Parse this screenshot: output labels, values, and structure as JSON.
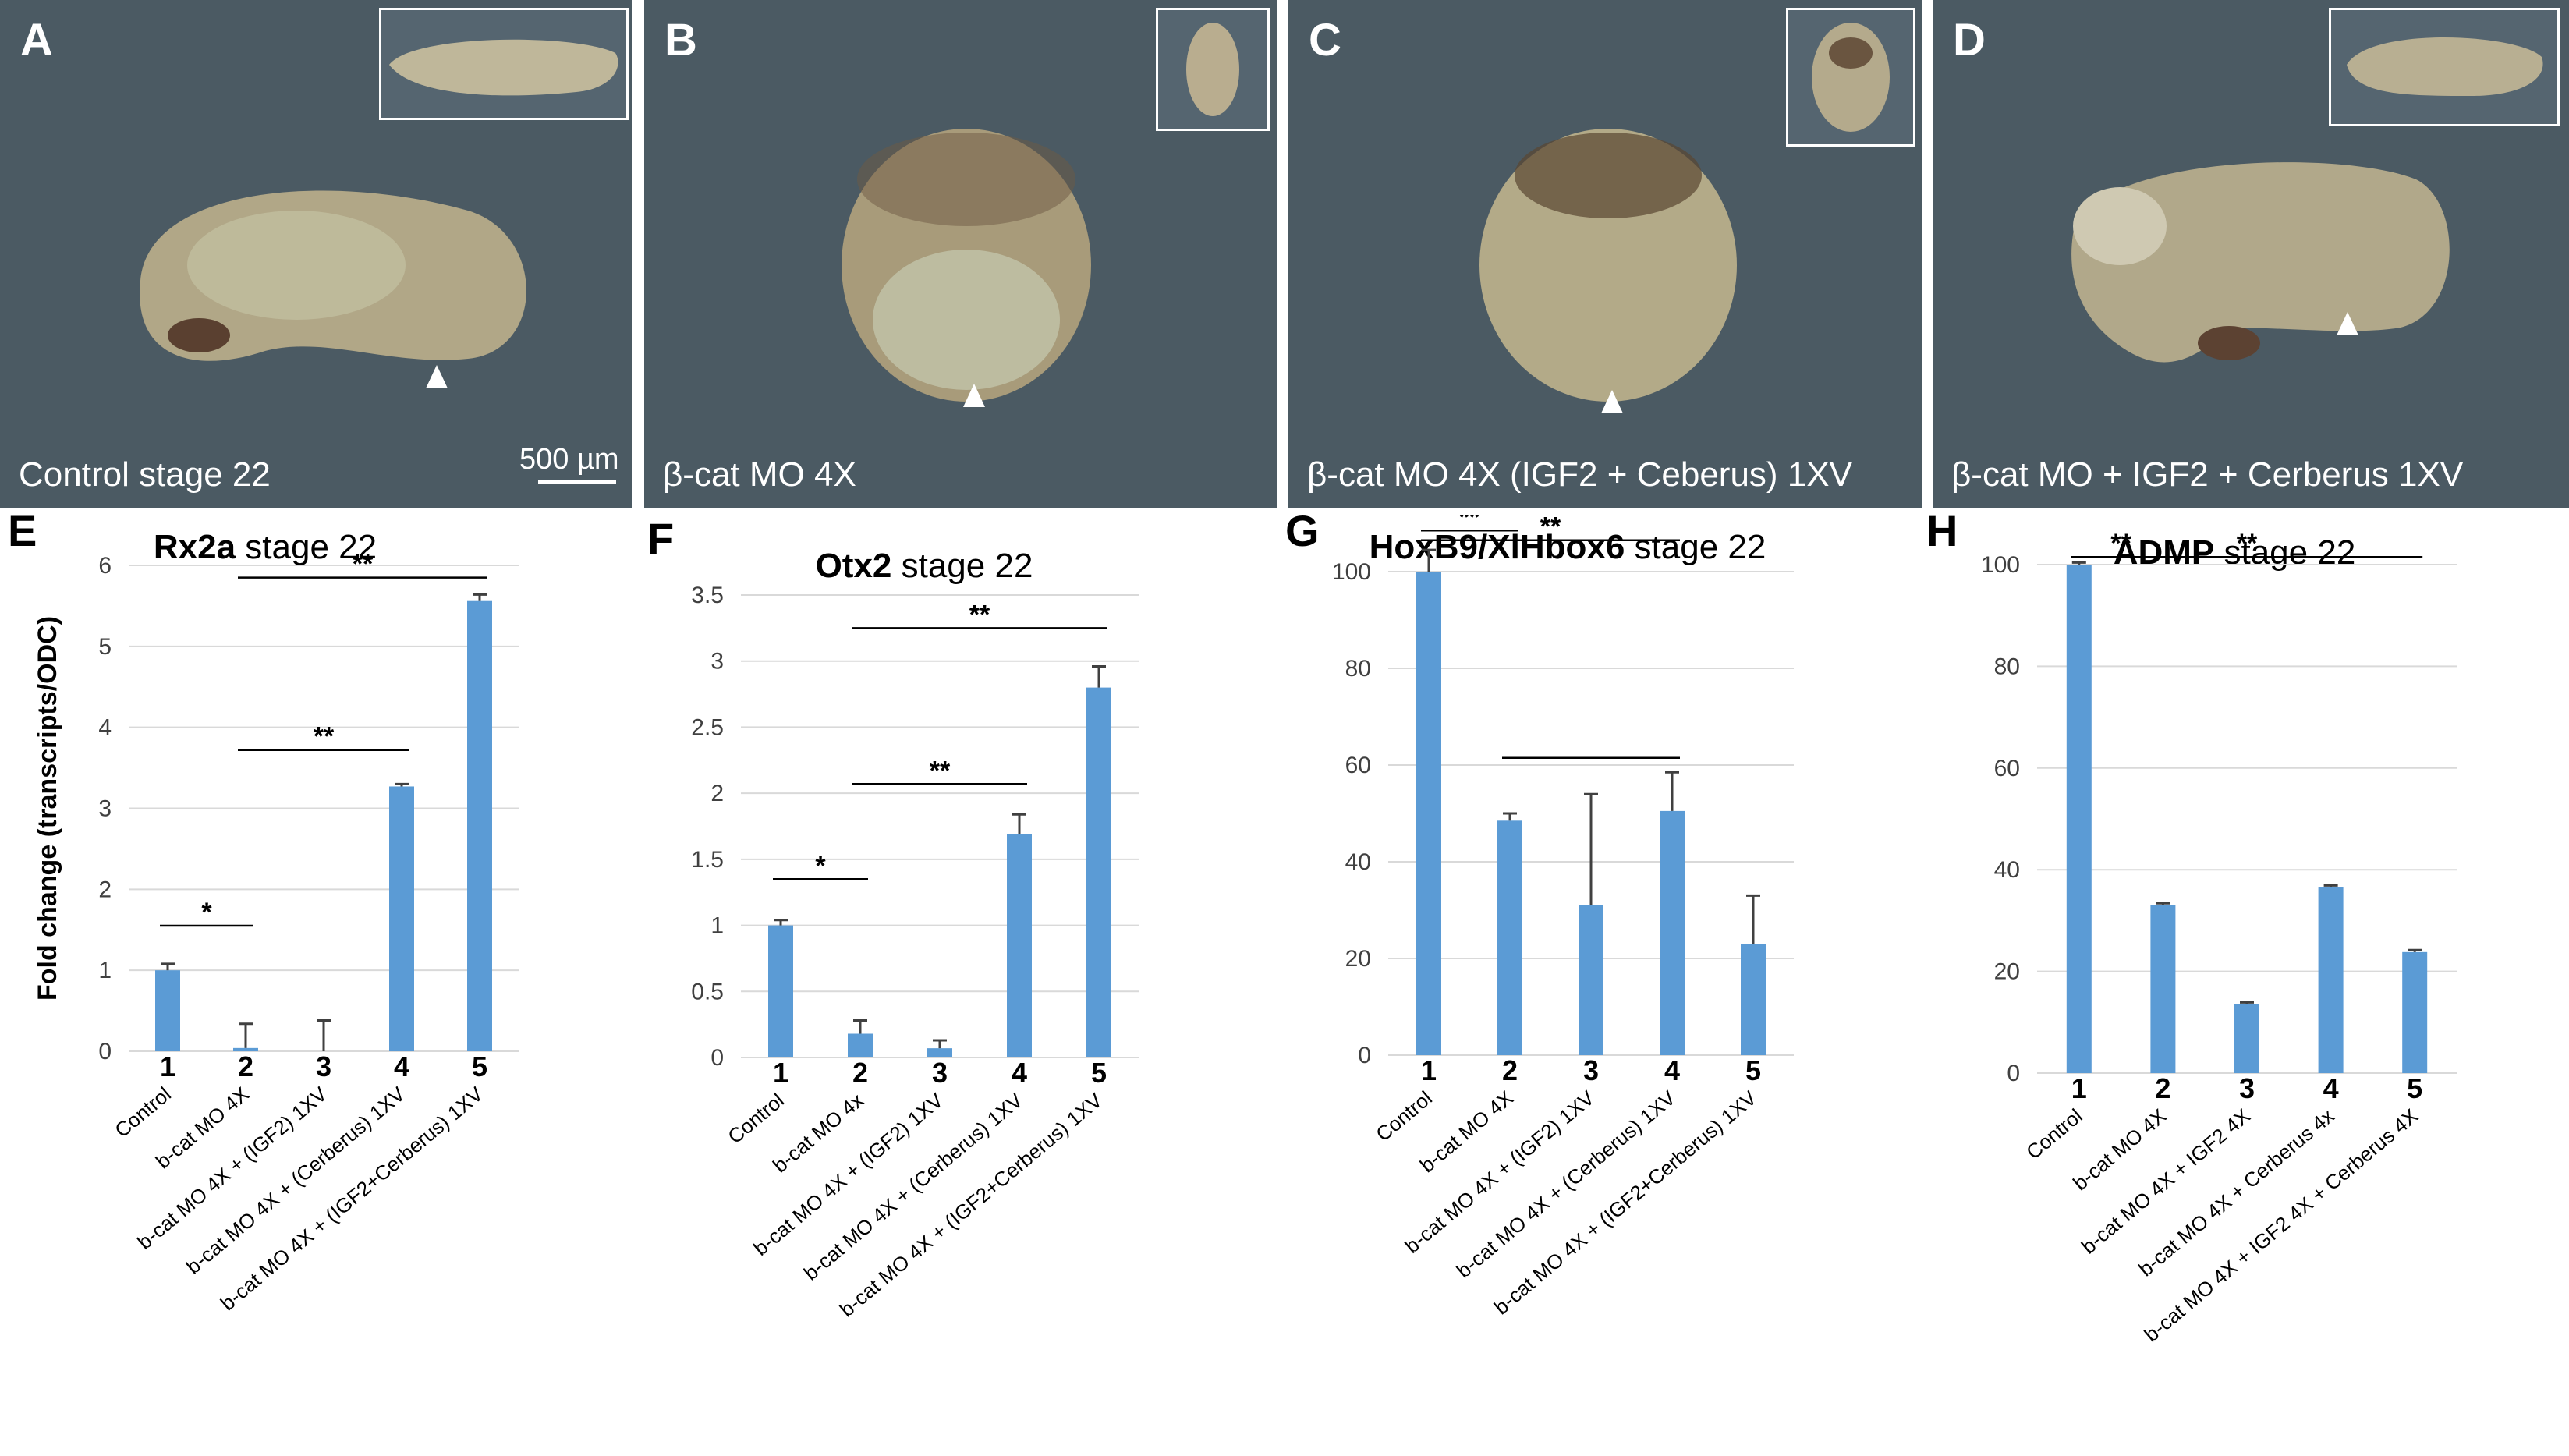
{
  "photos": [
    {
      "letter": "A",
      "caption": "Control stage 22",
      "scale": "500 µm"
    },
    {
      "letter": "B",
      "caption": "β-cat MO 4X"
    },
    {
      "letter": "C",
      "caption": "β-cat MO 4X (IGF2 + Ceberus)  1XV"
    },
    {
      "letter": "D",
      "caption": "β-cat MO + IGF2 + Cerberus  1XV"
    }
  ],
  "colors": {
    "bar": "#5b9bd5",
    "grid": "#d9d9d9",
    "photo_bg": "#4b5a63",
    "embryo": "#b4aa8a"
  },
  "chart_data": [
    {
      "type": "bar",
      "letter": "E",
      "title_bold": "Rx2a",
      "title_rest": " stage 22",
      "ylabel": "Fold change  (transcripts/ODC)",
      "ylim": [
        0,
        6
      ],
      "yticks": [
        "0",
        "1",
        "2",
        "3",
        "4",
        "5",
        "6"
      ],
      "ytick_values": [
        0,
        1,
        2,
        3,
        4,
        5,
        6
      ],
      "numbers": [
        "1",
        "2",
        "3",
        "4",
        "5"
      ],
      "categories": [
        "Control",
        "b-cat MO 4X",
        "b-cat MO 4X + (IGF2) 1XV",
        "b-cat MO 4X + (Cerberus) 1XV",
        "b-cat MO 4X + (IGF2+Cerberus) 1XV"
      ],
      "values": [
        1.0,
        0.04,
        0.0,
        3.27,
        5.56
      ],
      "errors": [
        0.08,
        0.3,
        0.38,
        0.03,
        0.08
      ],
      "brackets": [
        {
          "from": 1,
          "to": 2,
          "y": 1.55,
          "label": "*"
        },
        {
          "from": 2,
          "to": 4,
          "y": 3.72,
          "label": "**"
        },
        {
          "from": 2,
          "to": 5,
          "y": 5.85,
          "label": "**"
        }
      ]
    },
    {
      "type": "bar",
      "letter": "F",
      "title_bold": "Otx2",
      "title_rest": " stage 22",
      "ylabel": "",
      "ylim": [
        0,
        3.5
      ],
      "yticks": [
        "0",
        "0.5",
        "1",
        "1.5",
        "2",
        "2.5",
        "3",
        "3.5"
      ],
      "ytick_values": [
        0,
        0.5,
        1,
        1.5,
        2,
        2.5,
        3,
        3.5
      ],
      "numbers": [
        "1",
        "2",
        "3",
        "4",
        "5"
      ],
      "categories": [
        "Control",
        "b-cat MO 4x",
        "b-cat MO 4X + (IGF2) 1XV",
        "b-cat MO 4X + (Cerberus) 1XV",
        "b-cat MO 4X + (IGF2+Cerberus) 1XV"
      ],
      "values": [
        1.0,
        0.18,
        0.07,
        1.69,
        2.8
      ],
      "errors": [
        0.04,
        0.1,
        0.06,
        0.15,
        0.16
      ],
      "brackets": [
        {
          "from": 1,
          "to": 2,
          "y": 1.35,
          "label": "*"
        },
        {
          "from": 2,
          "to": 4,
          "y": 2.07,
          "label": "**"
        },
        {
          "from": 2,
          "to": 5,
          "y": 3.25,
          "label": "**"
        }
      ]
    },
    {
      "type": "bar",
      "letter": "G",
      "title_bold": "HoxB9/XlHbox6",
      "title_rest": " stage 22",
      "ylabel": "",
      "ylim": [
        0,
        100
      ],
      "yticks": [
        "0",
        "20",
        "40",
        "60",
        "80",
        "100"
      ],
      "ytick_values": [
        0,
        20,
        40,
        60,
        80,
        100
      ],
      "numbers": [
        "1",
        "2",
        "3",
        "4",
        "5"
      ],
      "categories": [
        "Control",
        "b-cat MO 4X",
        "b-cat MO 4X + (IGF2) 1XV",
        "b-cat MO 4X + (Cerberus) 1XV",
        "b-cat MO 4X + (IGF2+Cerberus) 1XV"
      ],
      "values": [
        100,
        48.5,
        31,
        50.5,
        23
      ],
      "errors": [
        4.5,
        1.5,
        23,
        8,
        10
      ],
      "brackets": [
        {
          "from": 1,
          "to": 2,
          "y": 108.5,
          "label": "**"
        },
        {
          "from": 1,
          "to": 4,
          "y": 106.5,
          "label": "**"
        },
        {
          "from": 2,
          "to": 4,
          "y": 61.5,
          "label": ""
        }
      ]
    },
    {
      "type": "bar",
      "letter": "H",
      "title_bold": "ADMP",
      "title_rest": " stage 22",
      "ylabel": "",
      "ylim": [
        0,
        100
      ],
      "yticks": [
        "0",
        "20",
        "40",
        "60",
        "80",
        "100"
      ],
      "ytick_values": [
        0,
        20,
        40,
        60,
        80,
        100
      ],
      "numbers": [
        "1",
        "2",
        "3",
        "4",
        "5"
      ],
      "categories": [
        "Control",
        "b-cat MO 4X",
        "b-cat MO 4X + IGF2 4X",
        "b-cat MO 4X + Cerberus 4x",
        "b-cat MO 4X + IGF2 4X + Cerberus 4X"
      ],
      "values": [
        100,
        33,
        13.5,
        36.5,
        23.8
      ],
      "errors": [
        0.4,
        0.4,
        0.4,
        0.4,
        0.4
      ],
      "brackets": [
        {
          "from": 1,
          "to": 2,
          "y": 101.5,
          "label": "**"
        },
        {
          "from": 1,
          "to": 5,
          "y": 101.5,
          "label": "**"
        }
      ]
    }
  ]
}
